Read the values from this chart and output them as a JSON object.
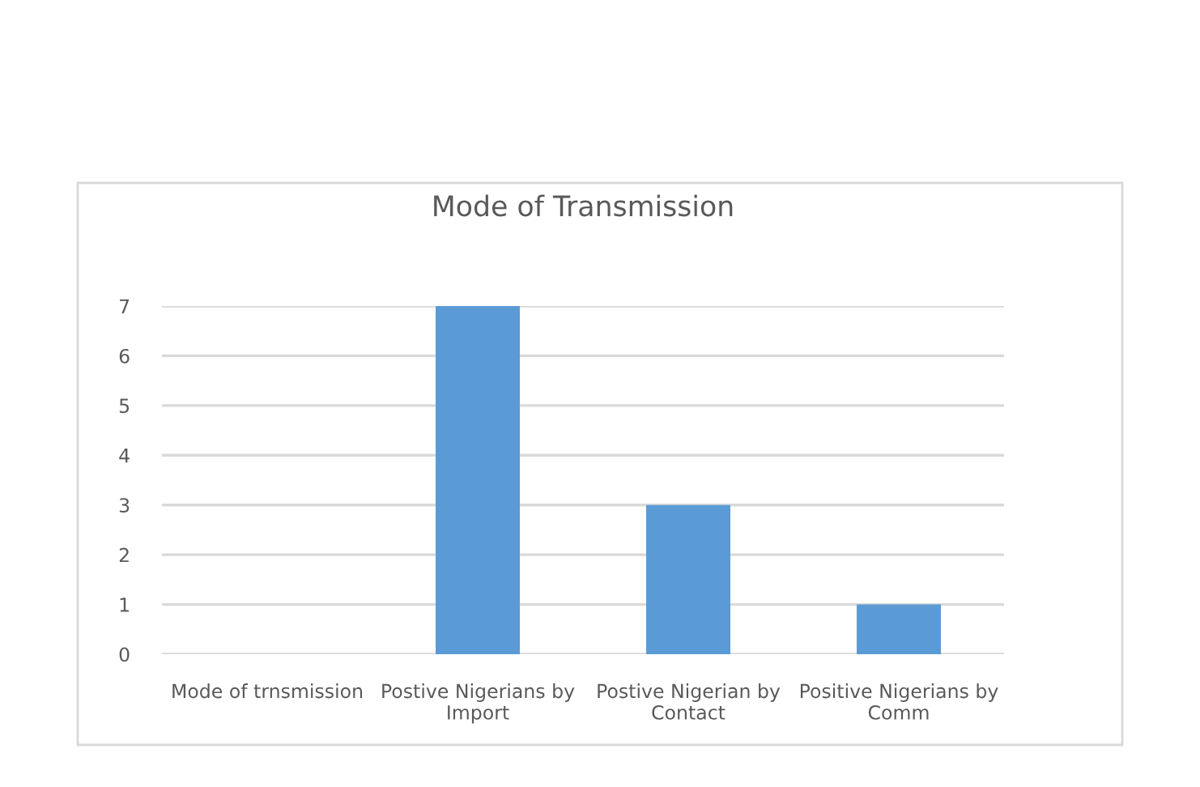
{
  "chart_data": {
    "type": "bar",
    "title": "Mode of Transmission",
    "categories": [
      "Mode of trnsmission",
      "Postive Nigerians by\nImport",
      "Postive Nigerian by\nContact",
      "Positive Nigerians by\nComm"
    ],
    "values": [
      null,
      7,
      3,
      1
    ],
    "color": "#5b9bd5",
    "ylim": [
      0,
      7
    ],
    "yticks": [
      0,
      1,
      2,
      3,
      4,
      5,
      6,
      7
    ],
    "grid": "y"
  }
}
